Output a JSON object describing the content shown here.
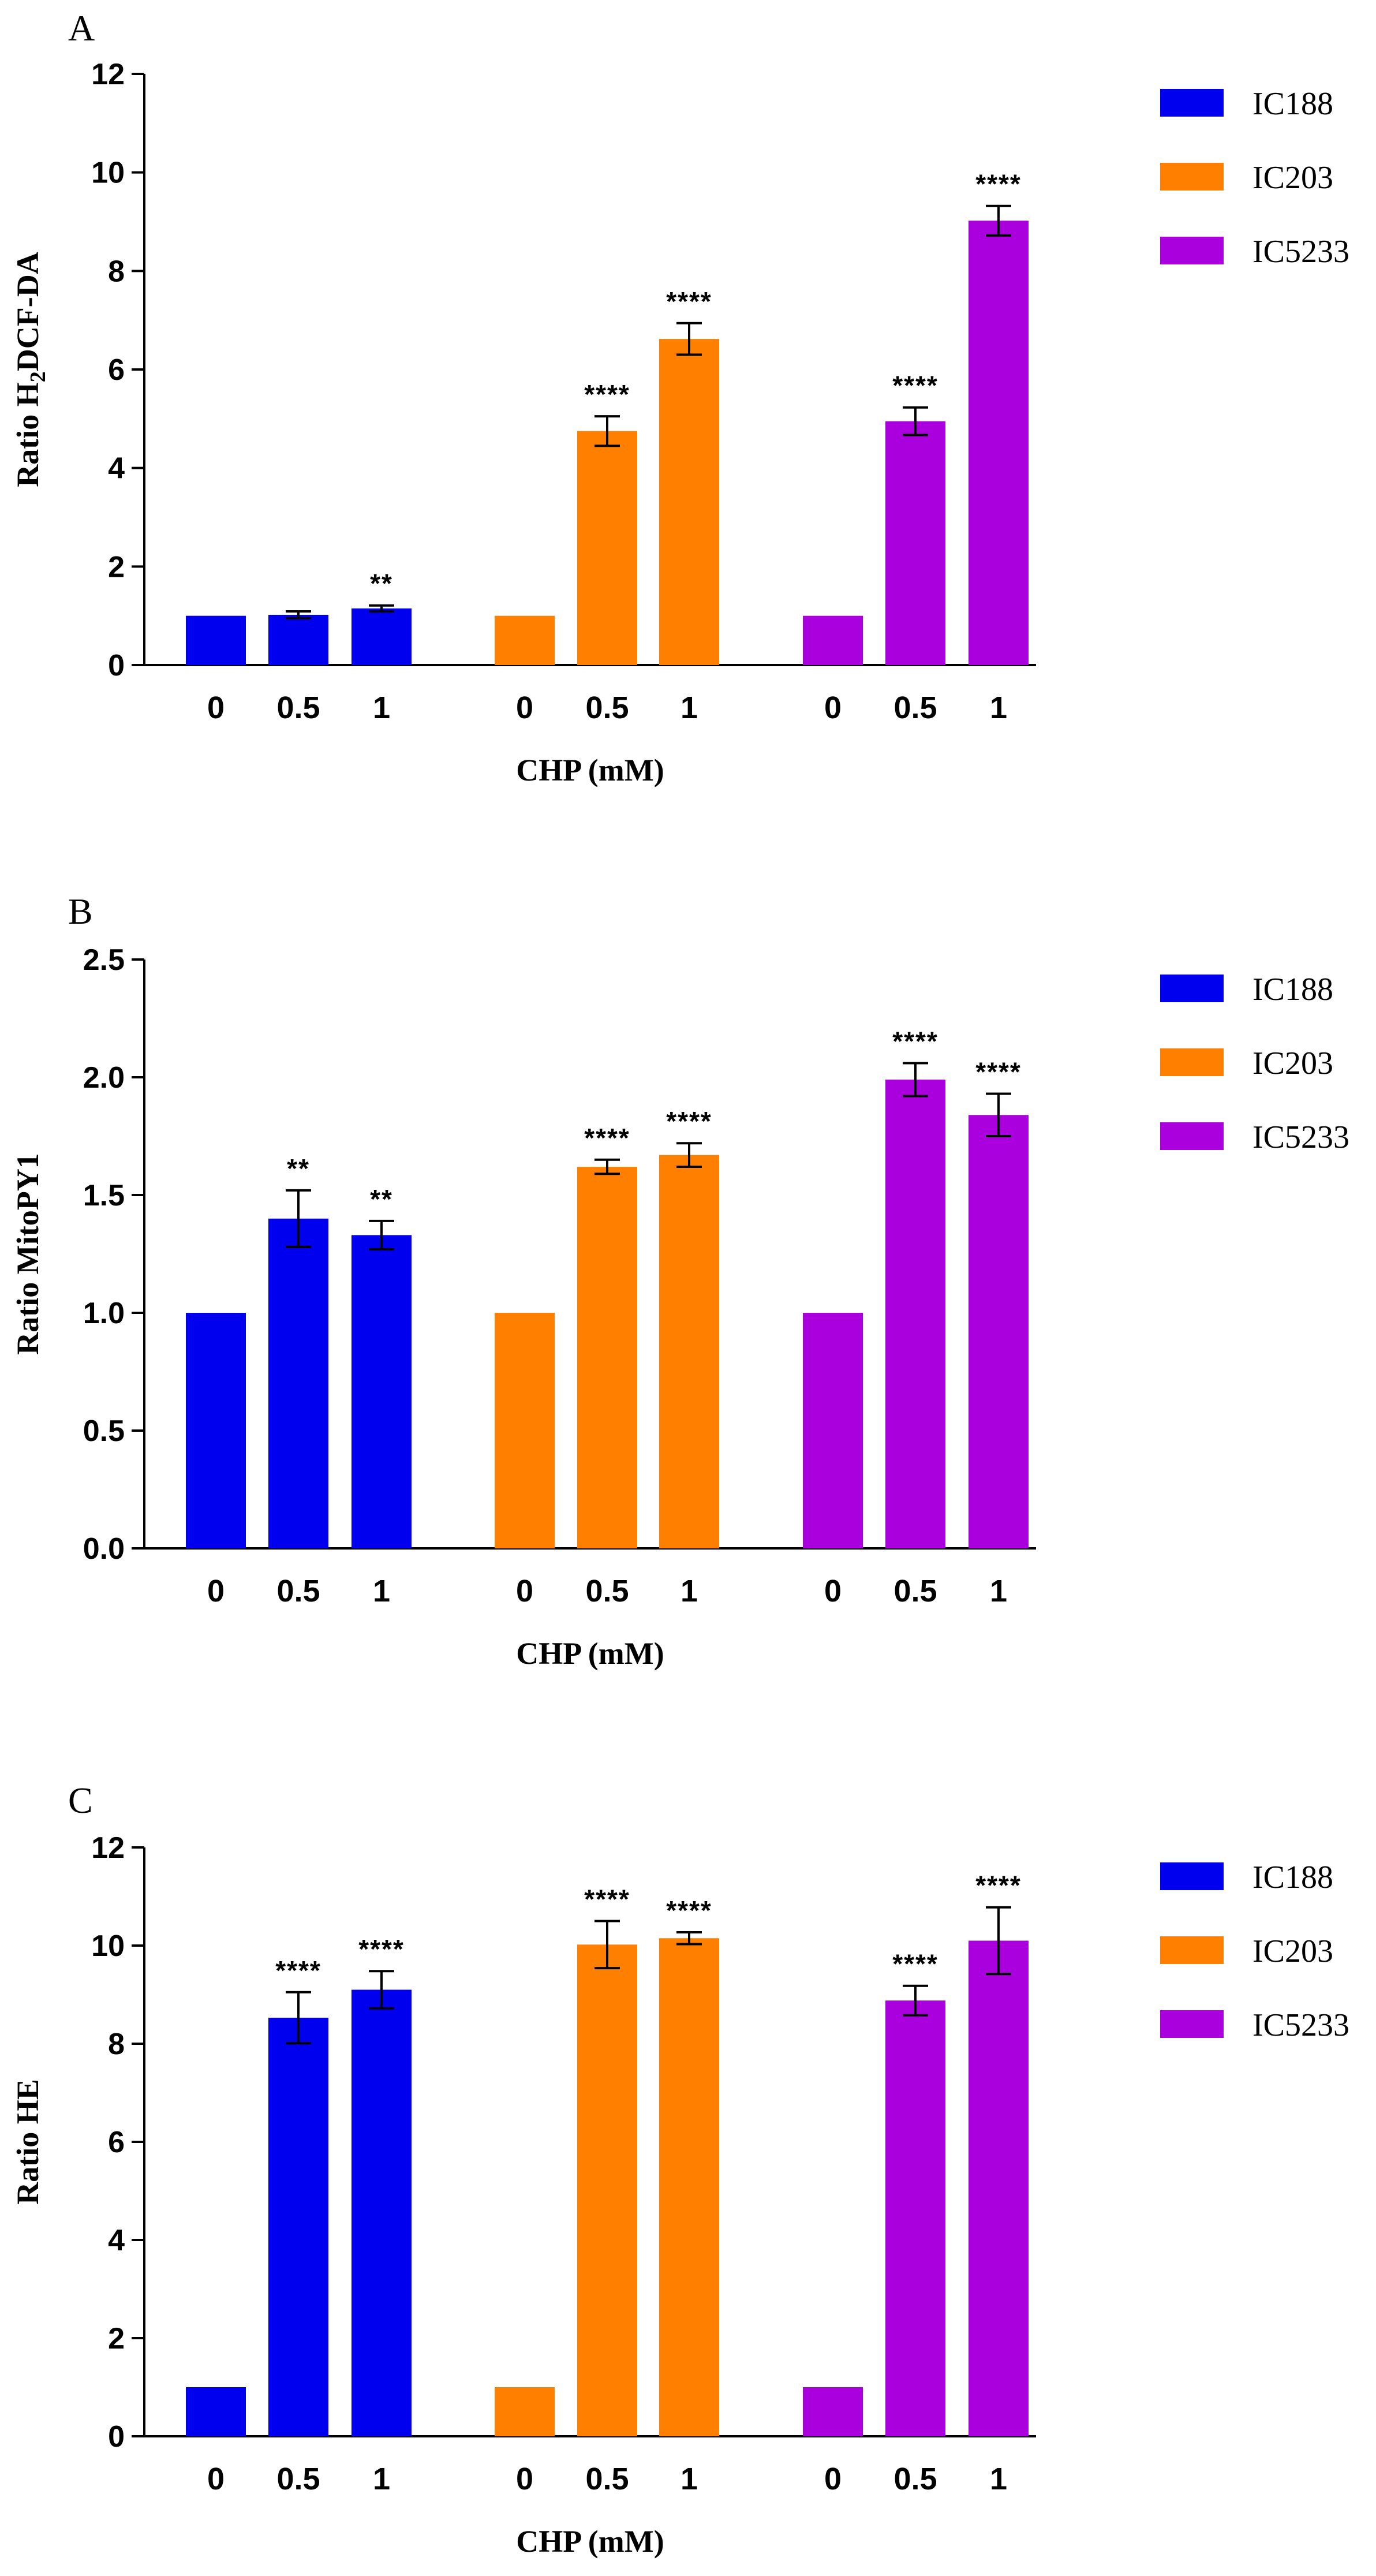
{
  "colors": {
    "IC188": "#0000ee",
    "IC203": "#ff7f00",
    "IC5233": "#aa00dd",
    "axis": "#000000"
  },
  "chart_data": [
    {
      "panel": "A",
      "type": "bar",
      "ylabel_main": "Ratio H",
      "ylabel_sub": "2",
      "ylabel_rest": "DCF-DA",
      "xlabel": "CHP (mM)",
      "ylim": [
        0,
        12
      ],
      "yticks": [
        "0",
        "2",
        "4",
        "6",
        "8",
        "10",
        "12"
      ],
      "legend": [
        "IC188",
        "IC203",
        "IC5233"
      ],
      "groups": [
        {
          "series": "IC188",
          "doses": [
            "0",
            "0.5",
            "1"
          ],
          "values": [
            1.0,
            1.02,
            1.15
          ],
          "errors": [
            0,
            0.07,
            0.06
          ],
          "sig": [
            "",
            "",
            "**"
          ]
        },
        {
          "series": "IC203",
          "doses": [
            "0",
            "0.5",
            "1"
          ],
          "values": [
            1.0,
            4.75,
            6.62
          ],
          "errors": [
            0,
            0.3,
            0.32
          ],
          "sig": [
            "",
            "****",
            "****"
          ]
        },
        {
          "series": "IC5233",
          "doses": [
            "0",
            "0.5",
            "1"
          ],
          "values": [
            1.0,
            4.95,
            9.02
          ],
          "errors": [
            0,
            0.28,
            0.3
          ],
          "sig": [
            "",
            "****",
            "****"
          ]
        }
      ]
    },
    {
      "panel": "B",
      "type": "bar",
      "ylabel_main": "Ratio MitoPY1",
      "ylabel_sub": "",
      "ylabel_rest": "",
      "xlabel": "CHP (mM)",
      "ylim": [
        0,
        2.5
      ],
      "yticks": [
        "0.0",
        "0.5",
        "1.0",
        "1.5",
        "2.0",
        "2.5"
      ],
      "legend": [
        "IC188",
        "IC203",
        "IC5233"
      ],
      "groups": [
        {
          "series": "IC188",
          "doses": [
            "0",
            "0.5",
            "1"
          ],
          "values": [
            1.0,
            1.4,
            1.33
          ],
          "errors": [
            0,
            0.12,
            0.06
          ],
          "sig": [
            "",
            "**",
            "**"
          ]
        },
        {
          "series": "IC203",
          "doses": [
            "0",
            "0.5",
            "1"
          ],
          "values": [
            1.0,
            1.62,
            1.67
          ],
          "errors": [
            0,
            0.03,
            0.05
          ],
          "sig": [
            "",
            "****",
            "****"
          ]
        },
        {
          "series": "IC5233",
          "doses": [
            "0",
            "0.5",
            "1"
          ],
          "values": [
            1.0,
            1.99,
            1.84
          ],
          "errors": [
            0,
            0.07,
            0.09
          ],
          "sig": [
            "",
            "****",
            "****"
          ]
        }
      ]
    },
    {
      "panel": "C",
      "type": "bar",
      "ylabel_main": "Ratio HE",
      "ylabel_sub": "",
      "ylabel_rest": "",
      "xlabel": "CHP (mM)",
      "ylim": [
        0,
        12
      ],
      "yticks": [
        "0",
        "2",
        "4",
        "6",
        "8",
        "10",
        "12"
      ],
      "legend": [
        "IC188",
        "IC203",
        "IC5233"
      ],
      "groups": [
        {
          "series": "IC188",
          "doses": [
            "0",
            "0.5",
            "1"
          ],
          "values": [
            1.0,
            8.53,
            9.1
          ],
          "errors": [
            0,
            0.52,
            0.38
          ],
          "sig": [
            "",
            "****",
            "****"
          ]
        },
        {
          "series": "IC203",
          "doses": [
            "0",
            "0.5",
            "1"
          ],
          "values": [
            1.0,
            10.02,
            10.15
          ],
          "errors": [
            0,
            0.48,
            0.12
          ],
          "sig": [
            "",
            "****",
            "****"
          ]
        },
        {
          "series": "IC5233",
          "doses": [
            "0",
            "0.5",
            "1"
          ],
          "values": [
            1.0,
            8.88,
            10.1
          ],
          "errors": [
            0,
            0.3,
            0.68
          ],
          "sig": [
            "",
            "****",
            "****"
          ]
        }
      ]
    }
  ]
}
